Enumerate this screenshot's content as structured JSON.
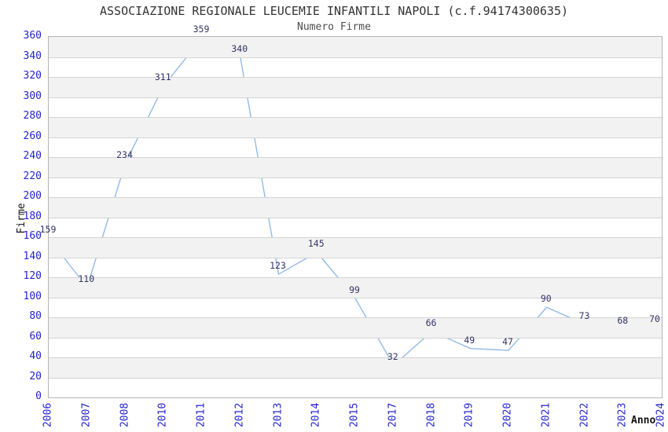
{
  "chart_data": {
    "type": "line",
    "title": "ASSOCIAZIONE REGIONALE LEUCEMIE INFANTILI NAPOLI (c.f.94174300635)",
    "subtitle": "Numero Firme",
    "xlabel": "Anno",
    "ylabel": "Firme",
    "categories": [
      "2006",
      "2007",
      "2008",
      "2010",
      "2011",
      "2012",
      "2013",
      "2014",
      "2015",
      "2017",
      "2018",
      "2019",
      "2020",
      "2021",
      "2022",
      "2023",
      "2024"
    ],
    "values": [
      159,
      110,
      234,
      311,
      359,
      340,
      123,
      145,
      99,
      32,
      66,
      49,
      47,
      90,
      73,
      68,
      70
    ],
    "ylim": [
      0,
      360
    ],
    "y_tick_step": 20,
    "y_ticks": [
      0,
      20,
      40,
      60,
      80,
      100,
      120,
      140,
      160,
      180,
      200,
      220,
      240,
      260,
      280,
      300,
      320,
      340,
      360
    ],
    "grid": true,
    "legend": "none",
    "banding": "alternating horizontal gray bands every 20 units",
    "data_labels_shown": true,
    "colors": {
      "line": "#92bbe8",
      "tick_label": "#2424cd",
      "data_label": "#333366",
      "band": "#f2f2f2",
      "gridline": "#d4d4d4",
      "plot_border": "#b5b5b5",
      "title": "#333333",
      "axis_title": "#111111",
      "background": "#ffffff"
    }
  }
}
